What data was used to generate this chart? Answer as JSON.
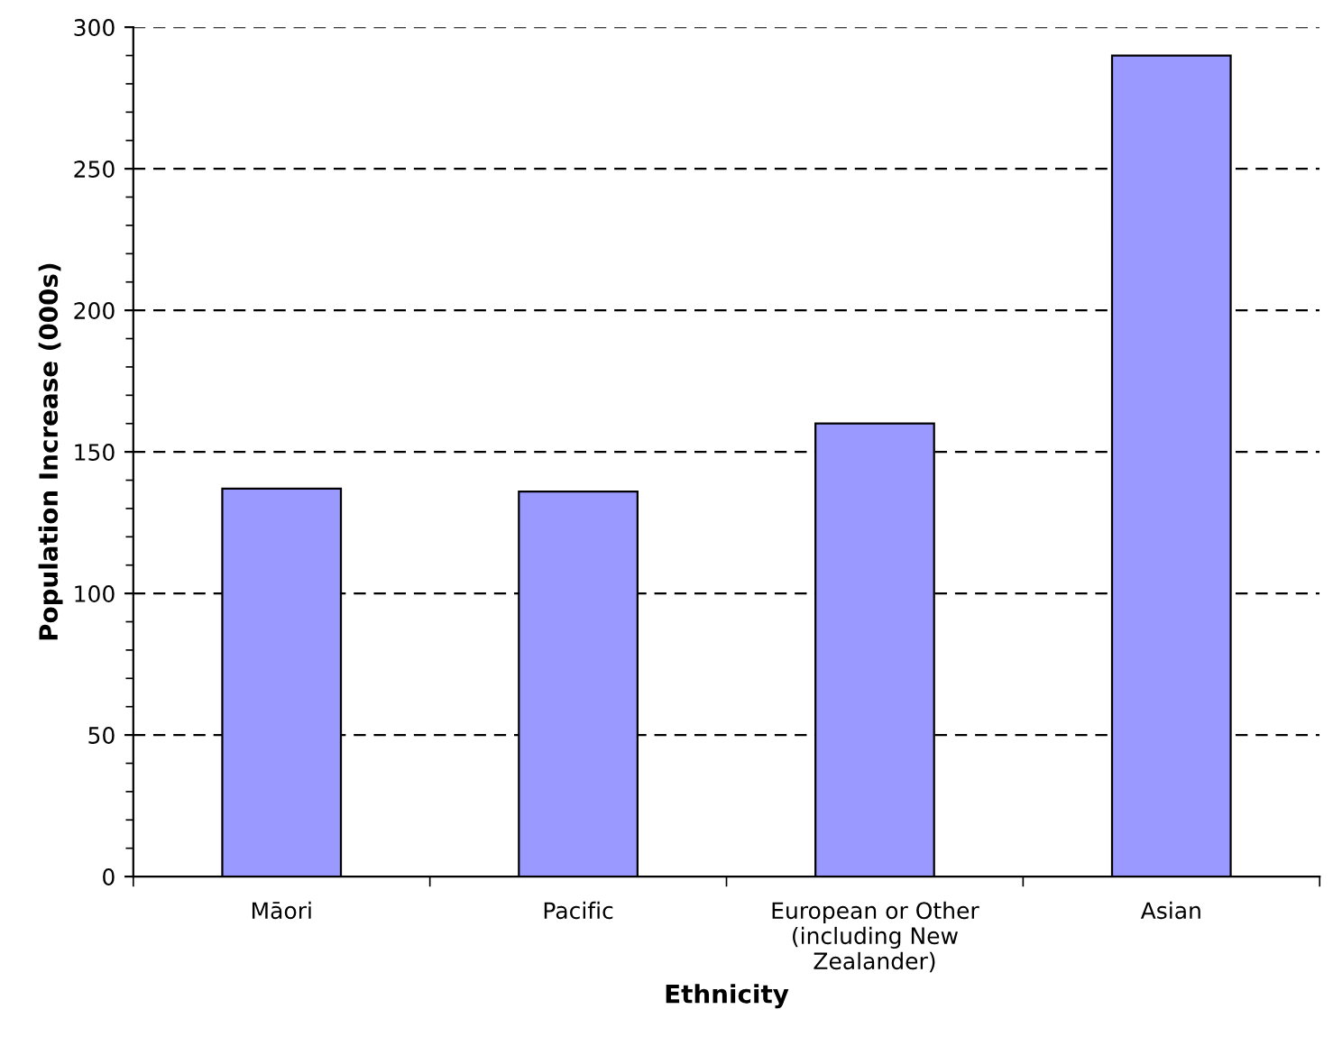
{
  "chart_data": {
    "type": "bar",
    "categories": [
      "Māori",
      "Pacific",
      "European or Other\n(including New\nZealander)",
      "Asian"
    ],
    "values": [
      137,
      136,
      160,
      290
    ],
    "color": "#9999ff",
    "xlabel": "Ethnicity",
    "ylabel": "Population Increase (000s)",
    "ylim": [
      0,
      300
    ],
    "yticks": [
      0,
      50,
      100,
      150,
      200,
      250,
      300
    ],
    "grid": "y"
  }
}
